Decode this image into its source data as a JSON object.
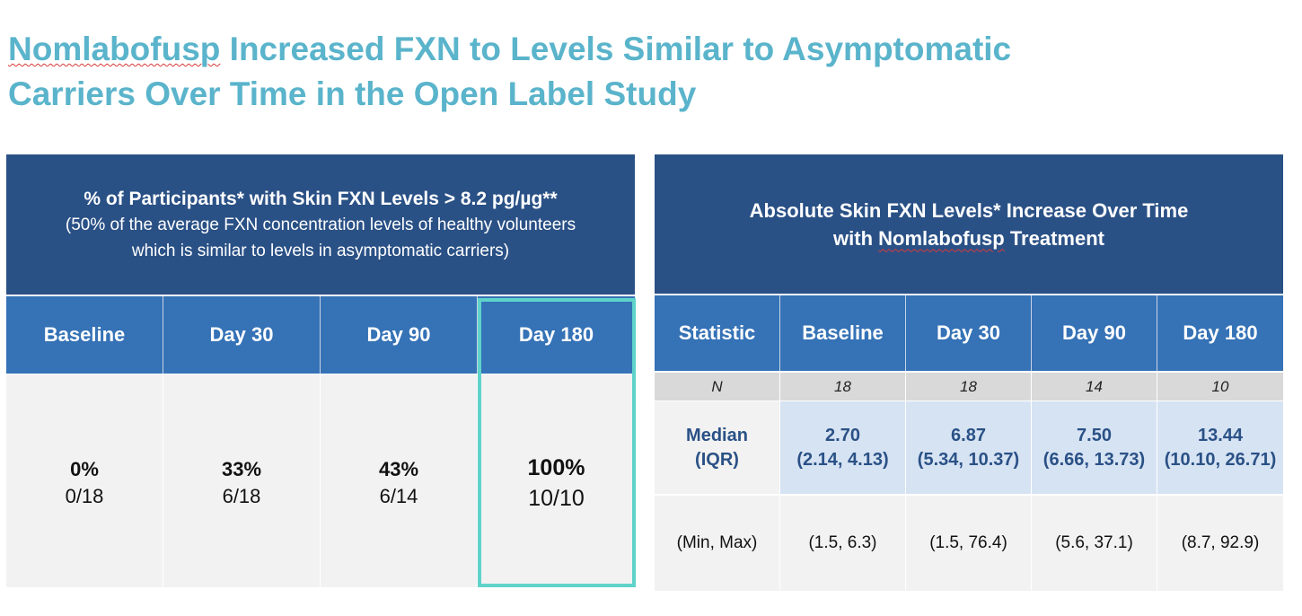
{
  "title": {
    "word_flagged": "Nomlabofusp",
    "line1_rest": " Increased FXN to Levels Similar to Asymptomatic",
    "line2": "Carriers Over Time in the Open Label Study"
  },
  "left_table": {
    "header_main": "% of Participants* with Skin FXN Levels > 8.2 pg/µg**",
    "header_sub1": "(50% of the average FXN concentration levels of healthy volunteers",
    "header_sub2": "which is similar to levels in asymptomatic carriers)",
    "columns": [
      "Baseline",
      "Day 30",
      "Day 90",
      "Day 180"
    ],
    "rows": [
      {
        "pct": "0%",
        "frac": "0/18"
      },
      {
        "pct": "33%",
        "frac": "6/18"
      },
      {
        "pct": "43%",
        "frac": "6/14"
      },
      {
        "pct": "100%",
        "frac": "10/10"
      }
    ],
    "highlight_color": "#5fd3c9"
  },
  "right_table": {
    "header_line1": "Absolute Skin FXN Levels* Increase Over Time",
    "header_line2_pre": "with ",
    "header_line2_flagged": "Nomlabofusp",
    "header_line2_post": " Treatment",
    "columns": [
      "Statistic",
      "Baseline",
      "Day 30",
      "Day 90",
      "Day 180"
    ],
    "n_row": {
      "label": "N",
      "values": [
        "18",
        "18",
        "14",
        "10"
      ]
    },
    "median_row": {
      "label1": "Median",
      "label2": "(IQR)",
      "values": [
        {
          "median": "2.70",
          "iqr": "(2.14, 4.13)"
        },
        {
          "median": "6.87",
          "iqr": "(5.34, 10.37)"
        },
        {
          "median": "7.50",
          "iqr": "(6.66, 13.73)"
        },
        {
          "median": "13.44",
          "iqr": "(10.10, 26.71)"
        }
      ]
    },
    "minmax_row": {
      "label": "(Min, Max)",
      "values": [
        "(1.5, 6.3)",
        "(1.5, 76.4)",
        "(5.6, 37.1)",
        "(8.7, 92.9)"
      ]
    }
  },
  "colors": {
    "title": "#5ab4cb",
    "header_dark": "#2a5186",
    "header_mid": "#3572b6",
    "median_fill": "#d6e3f3"
  }
}
